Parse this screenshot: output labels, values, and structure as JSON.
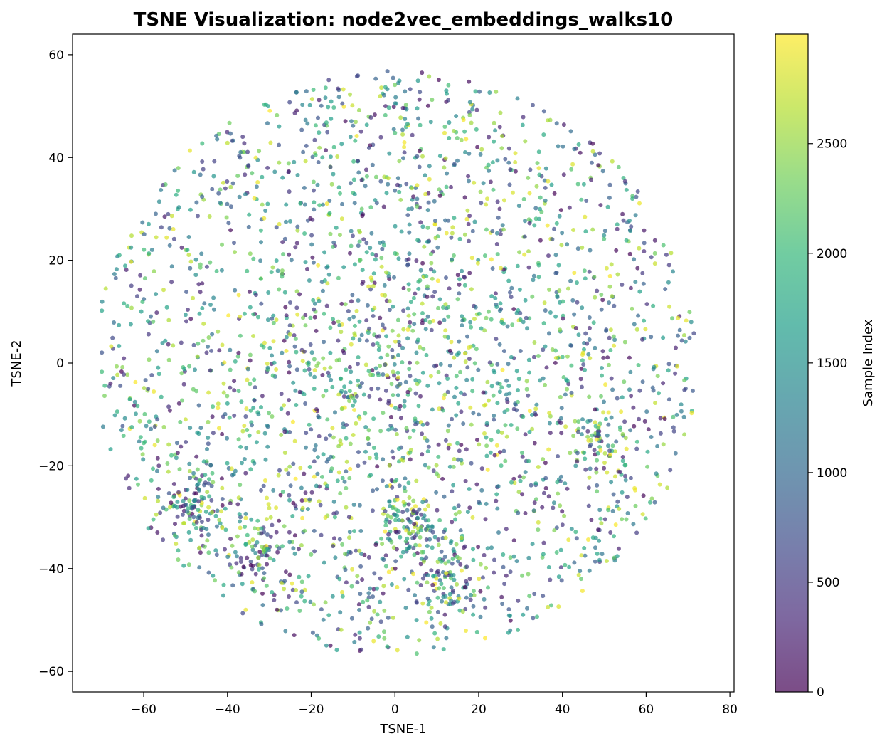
{
  "chart_data": {
    "type": "scatter",
    "title": "TSNE Visualization: node2vec_embeddings_walks10",
    "xlabel": "TSNE-1",
    "ylabel": "TSNE-2",
    "xlim": [
      -77,
      81
    ],
    "ylim": [
      -64,
      64
    ],
    "xticks": [
      -60,
      -40,
      -20,
      0,
      20,
      40,
      60,
      80
    ],
    "yticks": [
      -60,
      -40,
      -20,
      0,
      20,
      40,
      60
    ],
    "colorbar": {
      "label": "Sample Index",
      "colormap": "viridis",
      "alpha": 0.7,
      "range": [
        0,
        2999
      ],
      "ticks": [
        0,
        500,
        1000,
        1500,
        2000,
        2500
      ]
    },
    "points_summary": {
      "count": 3000,
      "distribution": "roughly circular cloud centred near (0, 0), x from about -70 to 73, y from about -58 to 58",
      "color_by": "sample index"
    },
    "cluster_regions": [
      {
        "x": -48,
        "y": -28
      },
      {
        "x": -33,
        "y": -37
      },
      {
        "x": 4,
        "y": -31
      },
      {
        "x": 13,
        "y": -42
      },
      {
        "x": 50,
        "y": -15
      }
    ],
    "grid": false,
    "legend": "none"
  }
}
